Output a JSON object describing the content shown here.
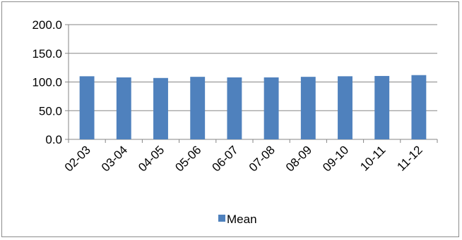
{
  "chart_data": {
    "type": "bar",
    "categories": [
      "02-03",
      "03-04",
      "04-05",
      "05-06",
      "06-07",
      "07-08",
      "08-09",
      "09-10",
      "10-11",
      "11-12"
    ],
    "series": [
      {
        "name": "Mean",
        "values": [
          110,
          108,
          107,
          109,
          108,
          108,
          109,
          110,
          110.5,
          112
        ]
      }
    ],
    "ylim": [
      0,
      200
    ],
    "yticks": [
      "0.0",
      "50.0",
      "100.0",
      "150.0",
      "200.0"
    ],
    "grid": true,
    "legend": "bottom",
    "colors": {
      "series": "#4f81bd",
      "grid": "#868686",
      "axis": "#868686"
    }
  }
}
